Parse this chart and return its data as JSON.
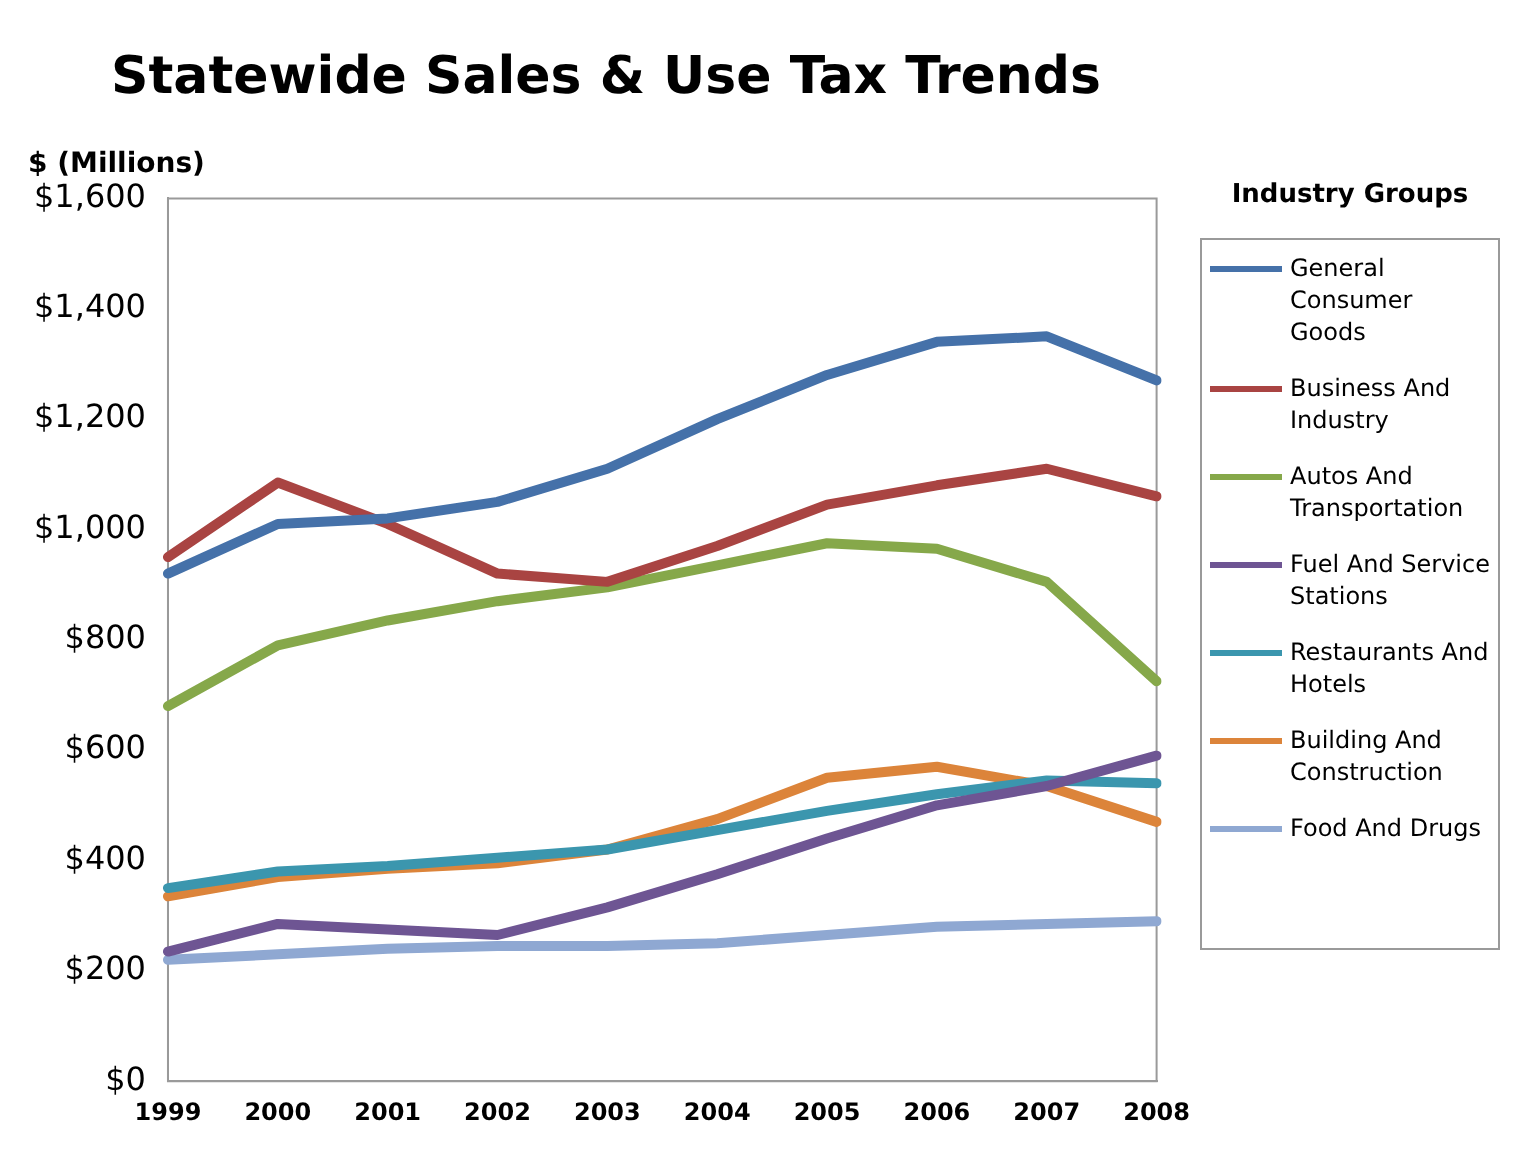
{
  "chart_data": {
    "type": "line",
    "title": "Statewide Sales & Use Tax Trends",
    "ylabel": "$ (Millions)",
    "legend_title": "Industry Groups",
    "legend": "right",
    "grid": false,
    "marker": "none",
    "line_style": "solid",
    "categories": [
      "1999",
      "2000",
      "2001",
      "2002",
      "2003",
      "2004",
      "2005",
      "2006",
      "2007",
      "2008"
    ],
    "ylim": [
      0,
      1600
    ],
    "yticks": [
      {
        "value": 0,
        "label": "$0"
      },
      {
        "value": 200,
        "label": "$200"
      },
      {
        "value": 400,
        "label": "$400"
      },
      {
        "value": 600,
        "label": "$600"
      },
      {
        "value": 800,
        "label": "$800"
      },
      {
        "value": 1000,
        "label": "$1,000"
      },
      {
        "value": 1200,
        "label": "$1,200"
      },
      {
        "value": 1400,
        "label": "$1,400"
      },
      {
        "value": 1600,
        "label": "$1,600"
      }
    ],
    "series": [
      {
        "name": "General Consumer Goods",
        "color": "#4571a9",
        "values": [
          920,
          1010,
          1020,
          1050,
          1110,
          1200,
          1280,
          1340,
          1350,
          1270
        ]
      },
      {
        "name": "Business And Industry",
        "color": "#a94442",
        "values": [
          950,
          1085,
          1010,
          920,
          905,
          970,
          1045,
          1080,
          1110,
          1060
        ]
      },
      {
        "name": "Autos And Transportation",
        "color": "#86a84a",
        "values": [
          680,
          790,
          835,
          870,
          895,
          935,
          975,
          965,
          905,
          725
        ]
      },
      {
        "name": "Fuel And Service Stations",
        "color": "#6e5593",
        "values": [
          235,
          285,
          275,
          265,
          315,
          375,
          440,
          500,
          535,
          590
        ]
      },
      {
        "name": "Restaurants And Hotels",
        "color": "#3b96ae",
        "values": [
          350,
          380,
          390,
          405,
          420,
          455,
          490,
          520,
          545,
          540
        ]
      },
      {
        "name": "Building And Construction",
        "color": "#dc843a",
        "values": [
          335,
          370,
          385,
          395,
          420,
          475,
          550,
          570,
          535,
          470
        ]
      },
      {
        "name": "Food And Drugs",
        "color": "#8fa8d2",
        "values": [
          220,
          230,
          240,
          245,
          245,
          250,
          265,
          280,
          285,
          290
        ]
      }
    ]
  }
}
